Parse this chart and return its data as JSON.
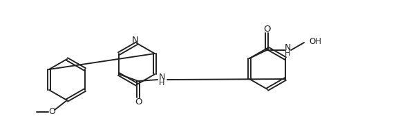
{
  "bg_color": "#ffffff",
  "line_color": "#222222",
  "line_width": 1.4,
  "font_size": 8.5,
  "figsize": [
    5.76,
    1.98
  ],
  "dpi": 100,
  "xlim": [
    0,
    5.76
  ],
  "ylim": [
    0,
    1.98
  ]
}
